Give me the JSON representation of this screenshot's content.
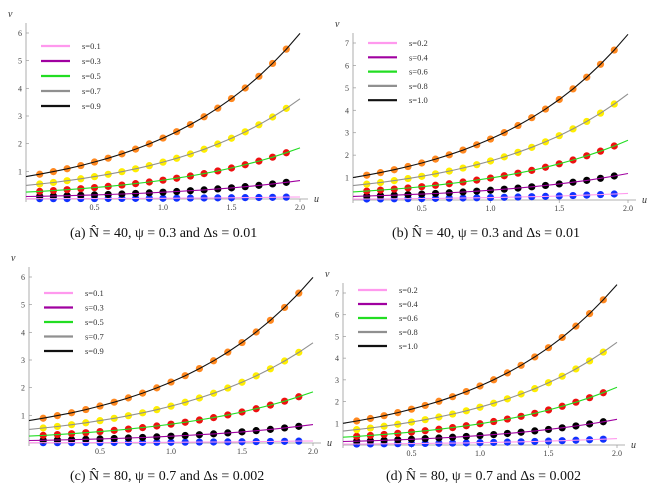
{
  "chart_data": [
    {
      "type": "line",
      "panel": "a",
      "caption": "(a)  N̂ = 40, ψ = 0.3 and Δs = 0.01",
      "xlabel": "u",
      "ylabel": "v",
      "xlim": [
        0,
        2.0
      ],
      "ylim": [
        0,
        6
      ],
      "xticks": [
        "0.5",
        "1.0",
        "1.5",
        "2.0"
      ],
      "yticks": [
        "1",
        "2",
        "3",
        "4",
        "5",
        "6"
      ],
      "legend_position": "top-left",
      "x": [
        0,
        0.1,
        0.2,
        0.3,
        0.4,
        0.5,
        0.6,
        0.7,
        0.8,
        0.9,
        1.0,
        1.1,
        1.2,
        1.3,
        1.4,
        1.5,
        1.6,
        1.7,
        1.8,
        1.9,
        2.0
      ],
      "marker_x_range": [
        0.1,
        1.9
      ],
      "series": [
        {
          "name": "s=0.1",
          "line_color": "#ff99ee",
          "marker_color": "#1030ff",
          "values": [
            0.01,
            0.011,
            0.012,
            0.014,
            0.015,
            0.016,
            0.018,
            0.02,
            0.022,
            0.025,
            0.027,
            0.03,
            0.033,
            0.037,
            0.041,
            0.045,
            0.05,
            0.055,
            0.06,
            0.067,
            0.074
          ]
        },
        {
          "name": "s=0.3",
          "line_color": "#a000a0",
          "marker_color": "#000000",
          "values": [
            0.09,
            0.099,
            0.11,
            0.121,
            0.134,
            0.148,
            0.164,
            0.181,
            0.2,
            0.221,
            0.245,
            0.27,
            0.299,
            0.33,
            0.365,
            0.403,
            0.446,
            0.493,
            0.545,
            0.602,
            0.665
          ]
        },
        {
          "name": "s=0.5",
          "line_color": "#22dd22",
          "marker_color": "#ee1010",
          "values": [
            0.25,
            0.276,
            0.305,
            0.337,
            0.373,
            0.412,
            0.456,
            0.503,
            0.556,
            0.615,
            0.68,
            0.751,
            0.83,
            0.917,
            1.014,
            1.12,
            1.238,
            1.369,
            1.512,
            1.672,
            1.847
          ]
        },
        {
          "name": "s=0.7",
          "line_color": "#909090",
          "marker_color": "#ffee00",
          "values": [
            0.49,
            0.542,
            0.598,
            0.661,
            0.731,
            0.808,
            0.893,
            0.987,
            1.091,
            1.205,
            1.332,
            1.472,
            1.627,
            1.798,
            1.987,
            2.196,
            2.427,
            2.682,
            2.964,
            3.276,
            3.621
          ]
        },
        {
          "name": "s=0.9",
          "line_color": "#111111",
          "marker_color": "#ff8820",
          "values": [
            0.81,
            0.895,
            0.989,
            1.093,
            1.208,
            1.336,
            1.476,
            1.631,
            1.803,
            1.993,
            2.202,
            2.433,
            2.689,
            2.972,
            3.284,
            3.63,
            4.012,
            4.434,
            4.9,
            5.416,
            5.985
          ]
        }
      ]
    },
    {
      "type": "line",
      "panel": "b",
      "caption": "(b)  N̂ = 40, ψ = 0.3 and Δs = 0.01",
      "xlabel": "u",
      "ylabel": "v",
      "xlim": [
        0,
        2.0
      ],
      "ylim": [
        0,
        7
      ],
      "xticks": [
        "0.5",
        "1.0",
        "1.5",
        "2.0"
      ],
      "yticks": [
        "1",
        "2",
        "3",
        "4",
        "5",
        "6",
        "7"
      ],
      "legend_position": "top-left",
      "x": [
        0,
        0.1,
        0.2,
        0.3,
        0.4,
        0.5,
        0.6,
        0.7,
        0.8,
        0.9,
        1.0,
        1.1,
        1.2,
        1.3,
        1.4,
        1.5,
        1.6,
        1.7,
        1.8,
        1.9,
        2.0
      ],
      "marker_x_range": [
        0.1,
        1.9
      ],
      "series": [
        {
          "name": "s=0.2",
          "line_color": "#ff99ee",
          "marker_color": "#1030ff",
          "values": [
            0.04,
            0.044,
            0.049,
            0.054,
            0.06,
            0.066,
            0.073,
            0.081,
            0.089,
            0.098,
            0.109,
            0.12,
            0.133,
            0.147,
            0.162,
            0.179,
            0.198,
            0.219,
            0.242,
            0.267,
            0.296
          ]
        },
        {
          "name": "s=0.4",
          "line_color": "#a000a0",
          "marker_color": "#000000",
          "values": [
            0.16,
            0.177,
            0.195,
            0.216,
            0.239,
            0.264,
            0.292,
            0.322,
            0.356,
            0.394,
            0.435,
            0.481,
            0.531,
            0.587,
            0.649,
            0.717,
            0.792,
            0.876,
            0.968,
            1.07,
            1.182
          ]
        },
        {
          "name": "s=0.6",
          "line_color": "#22dd22",
          "marker_color": "#ee1010",
          "values": [
            0.36,
            0.398,
            0.44,
            0.486,
            0.537,
            0.594,
            0.656,
            0.725,
            0.801,
            0.886,
            0.978,
            1.081,
            1.195,
            1.321,
            1.46,
            1.614,
            1.783,
            1.971,
            2.178,
            2.407,
            2.66
          ]
        },
        {
          "name": "s=0.8",
          "line_color": "#909090",
          "marker_color": "#ffee00",
          "values": [
            0.64,
            0.707,
            0.781,
            0.864,
            0.955,
            1.055,
            1.166,
            1.289,
            1.425,
            1.574,
            1.74,
            1.923,
            2.125,
            2.348,
            2.595,
            2.868,
            3.17,
            3.503,
            3.872,
            4.279,
            4.729
          ]
        },
        {
          "name": "s=1.0",
          "line_color": "#111111",
          "marker_color": "#ff8820",
          "values": [
            1.0,
            1.105,
            1.221,
            1.35,
            1.492,
            1.649,
            1.822,
            2.014,
            2.226,
            2.46,
            2.718,
            3.004,
            3.32,
            3.669,
            4.055,
            4.482,
            4.953,
            5.474,
            6.05,
            6.686,
            7.389
          ]
        }
      ]
    },
    {
      "type": "line",
      "panel": "c",
      "caption": "(c)  N̂ = 80, ψ = 0.7 and Δs = 0.002",
      "xlabel": "u",
      "ylabel": "v",
      "xlim": [
        0,
        2.0
      ],
      "ylim": [
        0,
        6
      ],
      "xticks": [
        "0.5",
        "1.0",
        "1.5",
        "2.0"
      ],
      "yticks": [
        "1",
        "2",
        "3",
        "4",
        "5",
        "6"
      ],
      "legend_position": "top-left",
      "x": [
        0,
        0.1,
        0.2,
        0.3,
        0.4,
        0.5,
        0.6,
        0.7,
        0.8,
        0.9,
        1.0,
        1.1,
        1.2,
        1.3,
        1.4,
        1.5,
        1.6,
        1.7,
        1.8,
        1.9,
        2.0
      ],
      "marker_x_range": [
        0.1,
        1.9
      ],
      "series": [
        {
          "name": "s=0.1",
          "line_color": "#ff99ee",
          "marker_color": "#1030ff",
          "values": [
            0.01,
            0.011,
            0.012,
            0.014,
            0.015,
            0.016,
            0.018,
            0.02,
            0.022,
            0.025,
            0.027,
            0.03,
            0.033,
            0.037,
            0.041,
            0.045,
            0.05,
            0.055,
            0.06,
            0.067,
            0.074
          ]
        },
        {
          "name": "s=0.3",
          "line_color": "#a000a0",
          "marker_color": "#000000",
          "values": [
            0.09,
            0.099,
            0.11,
            0.121,
            0.134,
            0.148,
            0.164,
            0.181,
            0.2,
            0.221,
            0.245,
            0.27,
            0.299,
            0.33,
            0.365,
            0.403,
            0.446,
            0.493,
            0.545,
            0.602,
            0.665
          ]
        },
        {
          "name": "s=0.5",
          "line_color": "#22dd22",
          "marker_color": "#ee1010",
          "values": [
            0.25,
            0.276,
            0.305,
            0.337,
            0.373,
            0.412,
            0.456,
            0.503,
            0.556,
            0.615,
            0.68,
            0.751,
            0.83,
            0.917,
            1.014,
            1.12,
            1.238,
            1.369,
            1.512,
            1.672,
            1.847
          ]
        },
        {
          "name": "s=0.7",
          "line_color": "#909090",
          "marker_color": "#ffee00",
          "values": [
            0.49,
            0.542,
            0.598,
            0.661,
            0.731,
            0.808,
            0.893,
            0.987,
            1.091,
            1.205,
            1.332,
            1.472,
            1.627,
            1.798,
            1.987,
            2.196,
            2.427,
            2.682,
            2.964,
            3.276,
            3.621
          ]
        },
        {
          "name": "s=0.9",
          "line_color": "#111111",
          "marker_color": "#ff8820",
          "values": [
            0.81,
            0.895,
            0.989,
            1.093,
            1.208,
            1.336,
            1.476,
            1.631,
            1.803,
            1.993,
            2.202,
            2.433,
            2.689,
            2.972,
            3.284,
            3.63,
            4.012,
            4.434,
            4.9,
            5.416,
            5.985
          ]
        }
      ]
    },
    {
      "type": "line",
      "panel": "d",
      "caption": "(d)  N̂ = 80, ψ = 0.7 and Δs = 0.002",
      "xlabel": "u",
      "ylabel": "v",
      "xlim": [
        0,
        2.0
      ],
      "ylim": [
        0,
        7
      ],
      "xticks": [
        "0.5",
        "1.0",
        "1.5",
        "2.0"
      ],
      "yticks": [
        "1",
        "2",
        "3",
        "4",
        "5",
        "6",
        "7"
      ],
      "legend_position": "top-left",
      "x": [
        0,
        0.1,
        0.2,
        0.3,
        0.4,
        0.5,
        0.6,
        0.7,
        0.8,
        0.9,
        1.0,
        1.1,
        1.2,
        1.3,
        1.4,
        1.5,
        1.6,
        1.7,
        1.8,
        1.9,
        2.0
      ],
      "marker_x_range": [
        0.1,
        1.9
      ],
      "series": [
        {
          "name": "s=0.2",
          "line_color": "#ff99ee",
          "marker_color": "#1030ff",
          "values": [
            0.04,
            0.044,
            0.049,
            0.054,
            0.06,
            0.066,
            0.073,
            0.081,
            0.089,
            0.098,
            0.109,
            0.12,
            0.133,
            0.147,
            0.162,
            0.179,
            0.198,
            0.219,
            0.242,
            0.267,
            0.296
          ]
        },
        {
          "name": "s=0.4",
          "line_color": "#a000a0",
          "marker_color": "#000000",
          "values": [
            0.16,
            0.177,
            0.195,
            0.216,
            0.239,
            0.264,
            0.292,
            0.322,
            0.356,
            0.394,
            0.435,
            0.481,
            0.531,
            0.587,
            0.649,
            0.717,
            0.792,
            0.876,
            0.968,
            1.07,
            1.182
          ]
        },
        {
          "name": "s=0.6",
          "line_color": "#22dd22",
          "marker_color": "#ee1010",
          "values": [
            0.36,
            0.398,
            0.44,
            0.486,
            0.537,
            0.594,
            0.656,
            0.725,
            0.801,
            0.886,
            0.978,
            1.081,
            1.195,
            1.321,
            1.46,
            1.614,
            1.783,
            1.971,
            2.178,
            2.407,
            2.66
          ]
        },
        {
          "name": "s=0.8",
          "line_color": "#909090",
          "marker_color": "#ffee00",
          "values": [
            0.64,
            0.707,
            0.781,
            0.864,
            0.955,
            1.055,
            1.166,
            1.289,
            1.425,
            1.574,
            1.74,
            1.923,
            2.125,
            2.348,
            2.595,
            2.868,
            3.17,
            3.503,
            3.872,
            4.279,
            4.729
          ]
        },
        {
          "name": "s=1.0",
          "line_color": "#111111",
          "marker_color": "#ff8820",
          "values": [
            1.0,
            1.105,
            1.221,
            1.35,
            1.492,
            1.649,
            1.822,
            2.014,
            2.226,
            2.46,
            2.718,
            3.004,
            3.32,
            3.669,
            4.055,
            4.482,
            4.953,
            5.474,
            6.05,
            6.686,
            7.389
          ]
        }
      ]
    }
  ]
}
